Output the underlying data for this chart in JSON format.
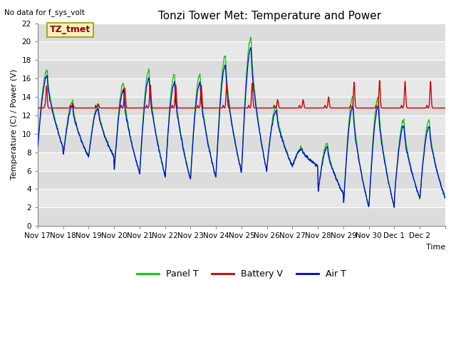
{
  "title": "Tonzi Tower Met: Temperature and Power",
  "no_data_text": "No data for f_sys_volt",
  "label_box_text": "TZ_tmet",
  "ylabel": "Temperature (C) / Power (V)",
  "xlabel": "Time",
  "ylim": [
    0,
    22
  ],
  "plot_bg_color": "#dcdcdc",
  "band_colors": [
    "#dcdcdc",
    "#e8e8e8"
  ],
  "xtick_labels": [
    "Nov 17",
    "Nov 18",
    "Nov 19",
    "Nov 20",
    "Nov 21",
    "Nov 22",
    "Nov 23",
    "Nov 24",
    "Nov 25",
    "Nov 26",
    "Nov 27",
    "Nov 28",
    "Nov 29",
    "Nov 30",
    "Dec 1",
    "Dec 2"
  ],
  "legend_entries": [
    "Panel T",
    "Battery V",
    "Air T"
  ],
  "legend_colors": [
    "#00cc00",
    "#cc0000",
    "#0000cc"
  ],
  "title_fontsize": 11,
  "axis_fontsize": 8,
  "tick_fontsize": 7.5
}
